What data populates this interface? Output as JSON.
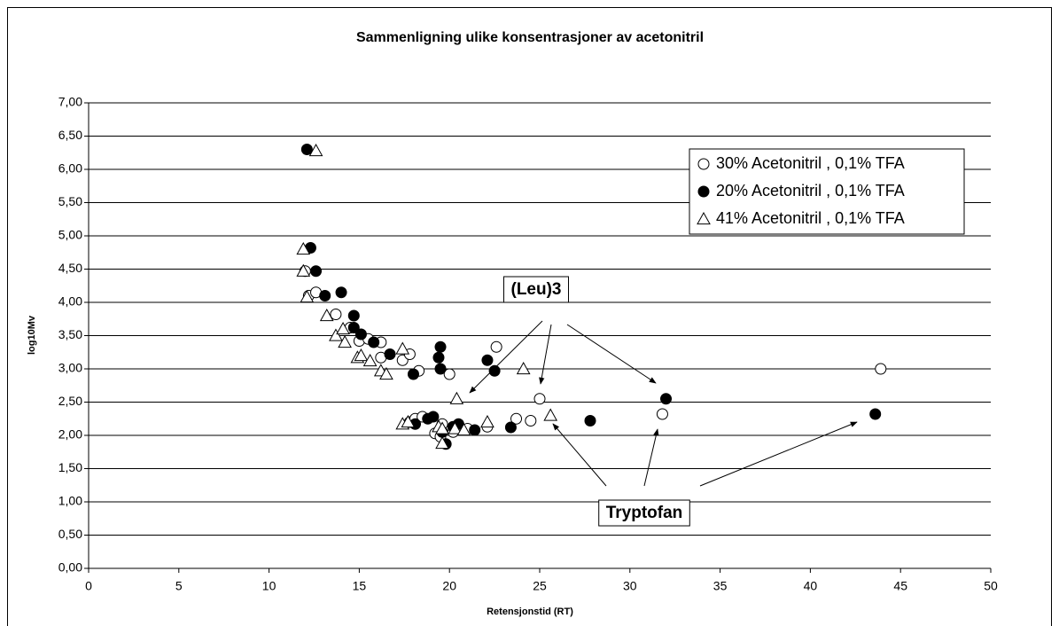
{
  "chart_data": {
    "type": "scatter",
    "title": "Sammenligning ulike konsentrasjoner av acetonitril",
    "x_label": "Retensjonstid (RT)",
    "y_label": "log10Mv",
    "xlim": [
      0,
      50
    ],
    "xticks": [
      0,
      5,
      10,
      15,
      20,
      25,
      30,
      35,
      40,
      45,
      50
    ],
    "ylim": [
      0,
      7
    ],
    "yticks": [
      {
        "value": 0,
        "label": "0,00"
      },
      {
        "value": 0.5,
        "label": "0,50"
      },
      {
        "value": 1,
        "label": "1,00"
      },
      {
        "value": 1.5,
        "label": "1,50"
      },
      {
        "value": 2,
        "label": "2,00"
      },
      {
        "value": 2.5,
        "label": "2,50"
      },
      {
        "value": 3,
        "label": "3,00"
      },
      {
        "value": 3.5,
        "label": "3,50"
      },
      {
        "value": 4,
        "label": "4,00"
      },
      {
        "value": 4.5,
        "label": "4,50"
      },
      {
        "value": 5,
        "label": "5,00"
      },
      {
        "value": 5.5,
        "label": "5,50"
      },
      {
        "value": 6,
        "label": "6,00"
      },
      {
        "value": 6.5,
        "label": "6,50"
      },
      {
        "value": 7,
        "label": "7,00"
      }
    ],
    "grid": true,
    "legend": "upper right",
    "annotations": [
      "(Leu)3",
      "Tryptofan"
    ],
    "series": [
      {
        "name": "30% Acetonitril , 0,1% TFA",
        "color": "#000000",
        "marker": "circle-open",
        "x": [
          12.0,
          12.2,
          12.6,
          13.7,
          14.5,
          15.0,
          15.5,
          16.2,
          16.2,
          17.4,
          17.8,
          18.3,
          20.0,
          22.6,
          17.8,
          18.1,
          18.5,
          19.2,
          19.6,
          19.5,
          20.2,
          21.0,
          22.1,
          23.7,
          24.5,
          25.0,
          31.8,
          43.9
        ],
        "values": [
          4.47,
          4.1,
          4.15,
          3.82,
          3.62,
          3.42,
          3.45,
          3.4,
          3.17,
          3.13,
          3.22,
          2.97,
          2.92,
          3.33,
          2.2,
          2.25,
          2.28,
          2.03,
          2.17,
          1.98,
          2.05,
          2.1,
          2.13,
          2.25,
          2.22,
          2.55,
          2.32,
          3.0
        ]
      },
      {
        "name": "20% Acetonitril , 0,1% TFA",
        "color": "#000000",
        "marker": "circle-filled",
        "x": [
          12.1,
          12.3,
          12.6,
          13.1,
          14.0,
          14.7,
          14.7,
          15.1,
          15.8,
          16.7,
          18.0,
          19.5,
          19.4,
          19.5,
          22.1,
          22.5,
          18.1,
          18.8,
          19.1,
          19.6,
          19.8,
          20.2,
          20.5,
          21.4,
          23.4,
          27.8,
          32.0,
          43.6
        ],
        "values": [
          6.3,
          4.82,
          4.47,
          4.1,
          4.15,
          3.8,
          3.62,
          3.52,
          3.4,
          3.22,
          2.92,
          3.33,
          3.17,
          3.0,
          3.13,
          2.97,
          2.17,
          2.25,
          2.28,
          2.05,
          1.87,
          2.13,
          2.17,
          2.08,
          2.12,
          2.22,
          2.55,
          2.32
        ]
      },
      {
        "name": "41% Acetonitril , 0,1% TFA",
        "color": "#000000",
        "marker": "triangle-open",
        "x": [
          12.6,
          11.9,
          11.9,
          12.1,
          13.2,
          13.7,
          14.1,
          14.2,
          14.9,
          15.1,
          15.6,
          16.2,
          16.5,
          17.4,
          17.4,
          17.7,
          19.4,
          19.6,
          19.6,
          20.3,
          20.4,
          20.8,
          22.1,
          24.1,
          25.6
        ],
        "values": [
          6.28,
          4.8,
          4.47,
          4.08,
          3.8,
          3.5,
          3.6,
          3.4,
          3.17,
          3.2,
          3.12,
          2.97,
          2.92,
          3.3,
          2.17,
          2.2,
          2.13,
          2.1,
          1.88,
          2.1,
          2.55,
          2.08,
          2.2,
          3.0,
          2.3
        ]
      }
    ]
  }
}
